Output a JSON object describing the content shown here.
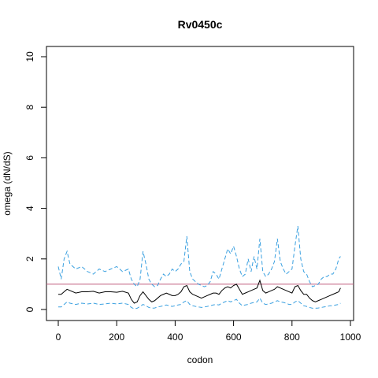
{
  "chart_data": {
    "type": "line",
    "title": "Rv0450c",
    "xlabel": "codon",
    "ylabel": "omega (dN/dS)",
    "xlim": [
      0,
      966
    ],
    "ylim": [
      0,
      10
    ],
    "xticks": [
      0,
      200,
      400,
      600,
      800,
      1000
    ],
    "yticks": [
      0,
      2,
      4,
      6,
      8,
      10
    ],
    "grid": false,
    "reference_line": {
      "y": 1,
      "color": "#c06080"
    },
    "series": [
      {
        "style": "solid",
        "color": "#000000",
        "x": [
          0,
          10,
          20,
          30,
          40,
          60,
          80,
          100,
          120,
          140,
          160,
          180,
          200,
          220,
          240,
          250,
          260,
          270,
          280,
          290,
          300,
          310,
          320,
          330,
          340,
          350,
          360,
          370,
          380,
          390,
          400,
          410,
          420,
          430,
          440,
          450,
          460,
          470,
          480,
          490,
          500,
          510,
          520,
          530,
          540,
          550,
          560,
          570,
          580,
          590,
          600,
          610,
          620,
          630,
          640,
          650,
          660,
          670,
          680,
          690,
          700,
          710,
          720,
          730,
          740,
          750,
          760,
          770,
          780,
          790,
          800,
          810,
          820,
          830,
          840,
          850,
          860,
          870,
          880,
          890,
          900,
          910,
          920,
          930,
          940,
          950,
          960,
          966
        ],
        "y": [
          0.6,
          0.6,
          0.7,
          0.8,
          0.75,
          0.65,
          0.7,
          0.7,
          0.72,
          0.65,
          0.7,
          0.7,
          0.68,
          0.72,
          0.65,
          0.4,
          0.25,
          0.3,
          0.55,
          0.7,
          0.55,
          0.4,
          0.3,
          0.35,
          0.45,
          0.55,
          0.6,
          0.65,
          0.6,
          0.55,
          0.55,
          0.6,
          0.7,
          0.9,
          0.95,
          0.7,
          0.6,
          0.55,
          0.5,
          0.45,
          0.5,
          0.55,
          0.6,
          0.65,
          0.65,
          0.6,
          0.75,
          0.85,
          0.9,
          0.85,
          0.95,
          1.0,
          0.8,
          0.6,
          0.65,
          0.7,
          0.75,
          0.8,
          0.85,
          1.15,
          0.75,
          0.65,
          0.7,
          0.75,
          0.8,
          0.9,
          0.85,
          0.8,
          0.75,
          0.7,
          0.65,
          0.9,
          0.95,
          0.75,
          0.6,
          0.6,
          0.45,
          0.35,
          0.3,
          0.35,
          0.4,
          0.45,
          0.5,
          0.55,
          0.6,
          0.65,
          0.7,
          0.85
        ]
      },
      {
        "style": "dashed",
        "color": "#3aa0e0",
        "x": [
          0,
          10,
          20,
          30,
          40,
          60,
          80,
          100,
          120,
          140,
          160,
          180,
          200,
          220,
          240,
          250,
          260,
          270,
          280,
          290,
          300,
          310,
          320,
          330,
          340,
          350,
          360,
          370,
          380,
          390,
          400,
          410,
          420,
          430,
          440,
          450,
          460,
          470,
          480,
          490,
          500,
          510,
          520,
          530,
          540,
          550,
          560,
          570,
          580,
          590,
          600,
          610,
          620,
          630,
          640,
          650,
          660,
          670,
          680,
          690,
          700,
          710,
          720,
          730,
          740,
          750,
          760,
          770,
          780,
          790,
          800,
          810,
          820,
          830,
          840,
          850,
          860,
          870,
          880,
          890,
          900,
          910,
          920,
          930,
          940,
          950,
          960,
          966
        ],
        "y": [
          1.7,
          1.2,
          2.0,
          2.3,
          1.8,
          1.6,
          1.7,
          1.5,
          1.4,
          1.6,
          1.5,
          1.6,
          1.7,
          1.5,
          1.6,
          1.2,
          1.0,
          0.9,
          1.2,
          2.3,
          1.8,
          1.2,
          1.0,
          0.9,
          0.95,
          1.2,
          1.4,
          1.3,
          1.4,
          1.6,
          1.5,
          1.6,
          1.8,
          1.9,
          2.9,
          1.5,
          1.2,
          1.1,
          1.0,
          0.95,
          0.9,
          0.95,
          1.1,
          1.5,
          1.4,
          1.2,
          1.6,
          2.0,
          2.4,
          2.2,
          2.5,
          2.1,
          1.6,
          1.3,
          1.4,
          2.0,
          1.5,
          2.1,
          1.6,
          2.8,
          1.5,
          1.3,
          1.4,
          1.6,
          1.9,
          2.8,
          1.9,
          1.6,
          1.4,
          1.5,
          1.6,
          2.5,
          3.3,
          2.0,
          1.5,
          1.4,
          1.1,
          0.9,
          0.95,
          1.0,
          1.2,
          1.3,
          1.3,
          1.4,
          1.4,
          1.6,
          2.0,
          2.1
        ]
      },
      {
        "style": "dashed",
        "color": "#3aa0e0",
        "x": [
          0,
          10,
          20,
          30,
          40,
          60,
          80,
          100,
          120,
          140,
          160,
          180,
          200,
          220,
          240,
          250,
          260,
          270,
          280,
          290,
          300,
          310,
          320,
          330,
          340,
          350,
          360,
          370,
          380,
          390,
          400,
          410,
          420,
          430,
          440,
          450,
          460,
          470,
          480,
          490,
          500,
          510,
          520,
          530,
          540,
          550,
          560,
          570,
          580,
          590,
          600,
          610,
          620,
          630,
          640,
          650,
          660,
          670,
          680,
          690,
          700,
          710,
          720,
          730,
          740,
          750,
          760,
          770,
          780,
          790,
          800,
          810,
          820,
          830,
          840,
          850,
          860,
          870,
          880,
          890,
          900,
          910,
          920,
          930,
          940,
          950,
          960,
          966
        ],
        "y": [
          0.1,
          0.1,
          0.2,
          0.3,
          0.25,
          0.2,
          0.25,
          0.22,
          0.25,
          0.2,
          0.22,
          0.25,
          0.22,
          0.25,
          0.2,
          0.08,
          0.03,
          0.05,
          0.12,
          0.2,
          0.15,
          0.08,
          0.05,
          0.06,
          0.1,
          0.12,
          0.15,
          0.18,
          0.15,
          0.12,
          0.15,
          0.18,
          0.2,
          0.3,
          0.35,
          0.2,
          0.15,
          0.12,
          0.1,
          0.08,
          0.1,
          0.12,
          0.15,
          0.18,
          0.2,
          0.18,
          0.25,
          0.3,
          0.35,
          0.3,
          0.35,
          0.4,
          0.25,
          0.15,
          0.18,
          0.2,
          0.25,
          0.28,
          0.3,
          0.45,
          0.25,
          0.2,
          0.22,
          0.25,
          0.3,
          0.35,
          0.3,
          0.28,
          0.25,
          0.2,
          0.2,
          0.3,
          0.35,
          0.25,
          0.15,
          0.12,
          0.08,
          0.05,
          0.05,
          0.06,
          0.08,
          0.1,
          0.12,
          0.15,
          0.15,
          0.18,
          0.2,
          0.25
        ]
      }
    ]
  }
}
